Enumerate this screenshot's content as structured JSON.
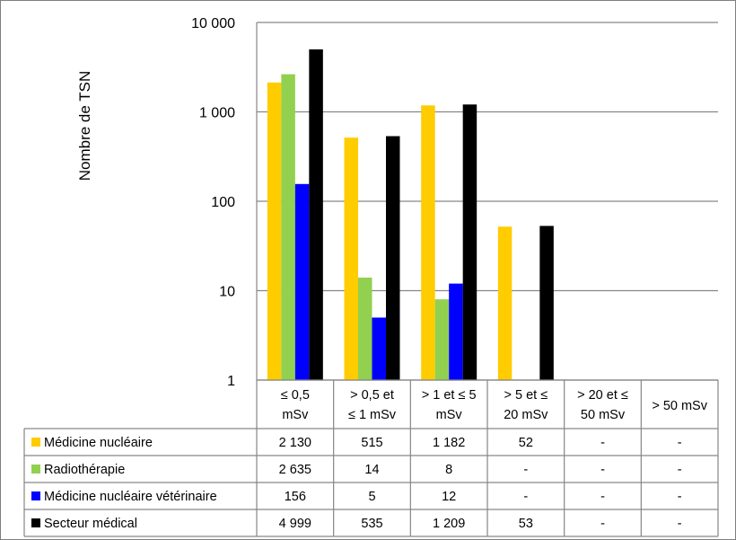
{
  "chart_data": {
    "type": "bar",
    "ylabel": "Nombre de TSN",
    "yscale": "log",
    "ylim": [
      1,
      10000
    ],
    "yticks": [
      {
        "value": 1,
        "label": "1"
      },
      {
        "value": 10,
        "label": "10"
      },
      {
        "value": 100,
        "label": "100"
      },
      {
        "value": 1000,
        "label": "1 000"
      },
      {
        "value": 10000,
        "label": "10 000"
      }
    ],
    "grid": true,
    "categories": [
      [
        "≤ 0,5",
        "mSv"
      ],
      [
        "> 0,5 et",
        "≤ 1 mSv"
      ],
      [
        "> 1 et ≤ 5",
        "mSv"
      ],
      [
        "> 5 et ≤",
        "20 mSv"
      ],
      [
        "> 20 et ≤",
        "50 mSv"
      ],
      [
        "> 50 mSv"
      ]
    ],
    "series": [
      {
        "name": "Médicine nucléaire",
        "color": "#ffcc00",
        "values": [
          2130,
          515,
          1182,
          52,
          null,
          null
        ],
        "labels": [
          "2 130",
          "515",
          "1 182",
          "52",
          "-",
          "-"
        ]
      },
      {
        "name": "Radiothérapie",
        "color": "#92d050",
        "values": [
          2635,
          14,
          8,
          null,
          null,
          null
        ],
        "labels": [
          "2 635",
          "14",
          "8",
          "-",
          "-",
          "-"
        ]
      },
      {
        "name": "Médicine nucléaire vétérinaire",
        "color": "#0000ff",
        "values": [
          156,
          5,
          12,
          null,
          null,
          null
        ],
        "labels": [
          "156",
          "5",
          "12",
          "-",
          "-",
          "-"
        ]
      },
      {
        "name": "Secteur médical",
        "color": "#000000",
        "values": [
          4999,
          535,
          1209,
          53,
          null,
          null
        ],
        "labels": [
          "4 999",
          "535",
          "1 209",
          "53",
          "-",
          "-"
        ]
      }
    ],
    "legend": "data-table"
  }
}
